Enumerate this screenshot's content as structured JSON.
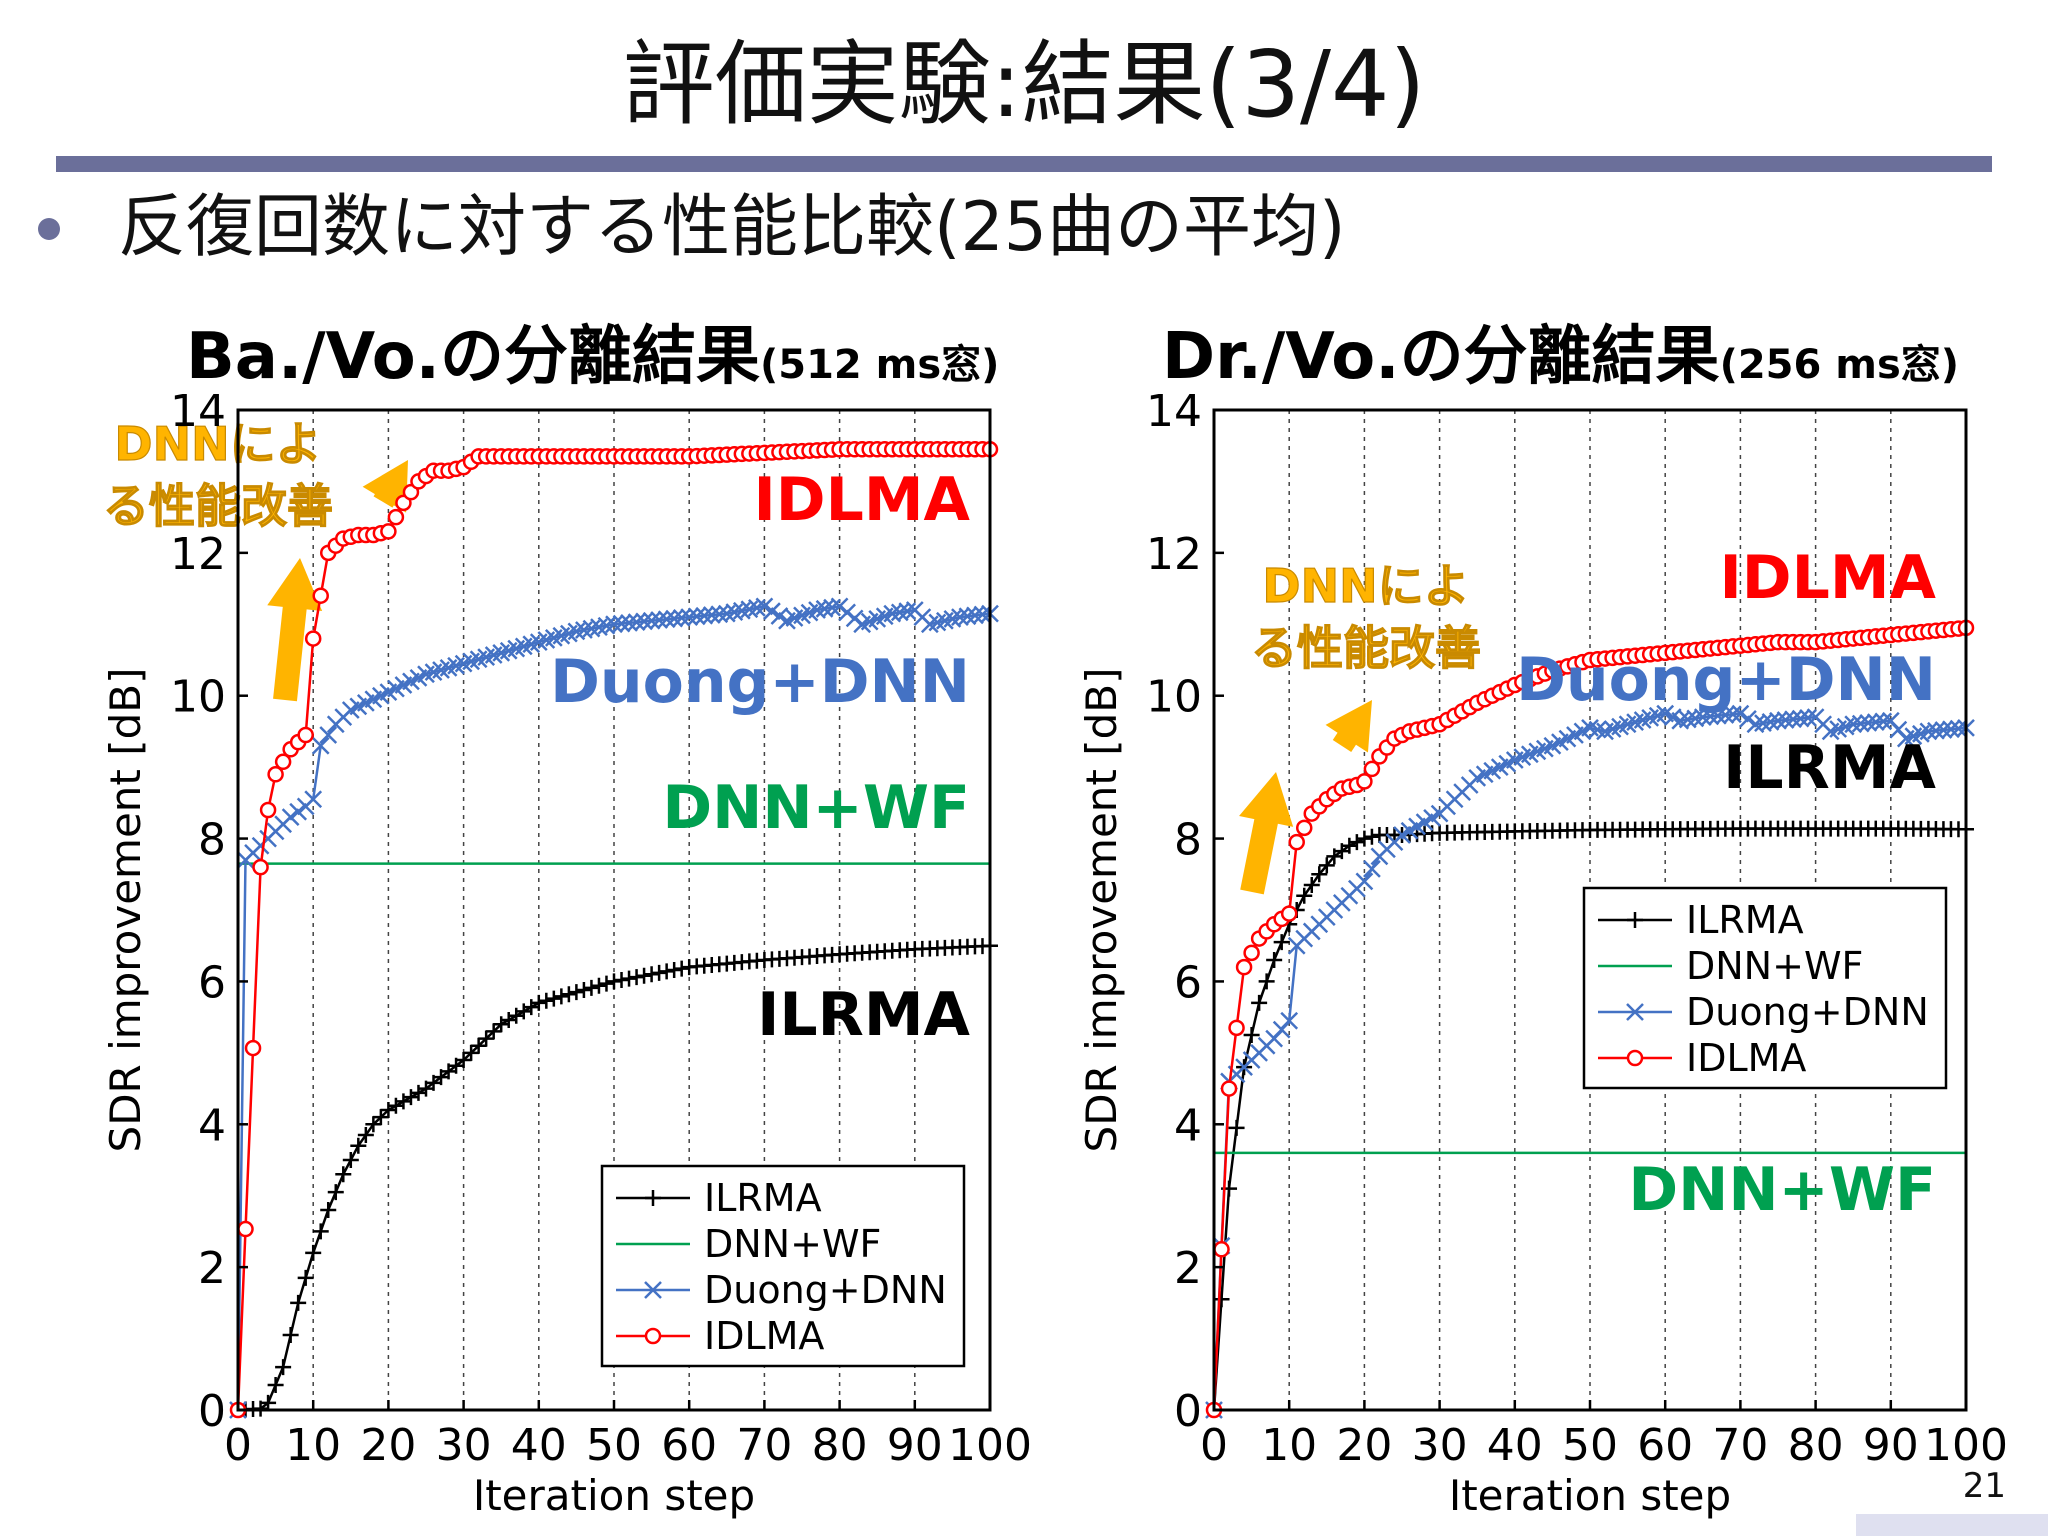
{
  "slide": {
    "title": "評価実験:結果(3/4)",
    "bullet": "反復回数に対する性能比較(25曲の平均)",
    "page_number": "21"
  },
  "colors": {
    "ILRMA": "#000000",
    "DNN+WF": "#00a050",
    "Duong+DNN": "#4472c4",
    "IDLMA": "#ff0000",
    "annotation": "#ffb400",
    "rule": "#6b6f9a"
  },
  "chart_data": [
    {
      "type": "line",
      "title": "Ba./Vo.の分離結果",
      "subtitle": "(512 ms窓)",
      "xlabel": "Iteration step",
      "ylabel": "SDR improvement [dB]",
      "xlim": [
        0,
        100
      ],
      "ylim": [
        0,
        14
      ],
      "xticks": [
        0,
        10,
        20,
        30,
        40,
        50,
        60,
        70,
        80,
        90,
        100
      ],
      "yticks": [
        0,
        2,
        4,
        6,
        8,
        10,
        12,
        14
      ],
      "grid": "vertical dotted",
      "legend_position": "bottom-right",
      "annotation": "DNNによる性能改善",
      "series": [
        {
          "name": "ILRMA",
          "marker": "plus",
          "points": [
            [
              0,
              0
            ],
            [
              3,
              0.02
            ],
            [
              4,
              0.1
            ],
            [
              6,
              0.6
            ],
            [
              8,
              1.5
            ],
            [
              10,
              2.2
            ],
            [
              12,
              2.8
            ],
            [
              14,
              3.3
            ],
            [
              16,
              3.7
            ],
            [
              18,
              4.0
            ],
            [
              20,
              4.2
            ],
            [
              25,
              4.5
            ],
            [
              30,
              4.9
            ],
            [
              35,
              5.4
            ],
            [
              40,
              5.7
            ],
            [
              45,
              5.85
            ],
            [
              50,
              6.0
            ],
            [
              55,
              6.1
            ],
            [
              60,
              6.2
            ],
            [
              70,
              6.3
            ],
            [
              80,
              6.38
            ],
            [
              90,
              6.45
            ],
            [
              100,
              6.5
            ]
          ]
        },
        {
          "name": "DNN+WF",
          "marker": "none",
          "points": [
            [
              0,
              7.65
            ],
            [
              100,
              7.65
            ]
          ]
        },
        {
          "name": "Duong+DNN",
          "marker": "x",
          "points": [
            [
              0,
              0
            ],
            [
              1,
              7.7
            ],
            [
              3,
              7.9
            ],
            [
              5,
              8.1
            ],
            [
              7,
              8.3
            ],
            [
              9,
              8.45
            ],
            [
              10,
              8.55
            ],
            [
              11,
              9.3
            ],
            [
              13,
              9.6
            ],
            [
              15,
              9.8
            ],
            [
              20,
              10.05
            ],
            [
              25,
              10.3
            ],
            [
              30,
              10.45
            ],
            [
              35,
              10.6
            ],
            [
              40,
              10.75
            ],
            [
              45,
              10.9
            ],
            [
              50,
              11.0
            ],
            [
              55,
              11.05
            ],
            [
              60,
              11.1
            ],
            [
              65,
              11.15
            ],
            [
              70,
              11.25
            ],
            [
              73,
              11.05
            ],
            [
              77,
              11.2
            ],
            [
              80,
              11.25
            ],
            [
              83,
              11.0
            ],
            [
              87,
              11.15
            ],
            [
              90,
              11.2
            ],
            [
              92,
              11.0
            ],
            [
              96,
              11.1
            ],
            [
              100,
              11.15
            ]
          ]
        },
        {
          "name": "IDLMA",
          "marker": "circle",
          "points": [
            [
              0,
              0
            ],
            [
              3,
              7.6
            ],
            [
              4,
              8.4
            ],
            [
              5,
              8.9
            ],
            [
              7,
              9.25
            ],
            [
              9,
              9.45
            ],
            [
              10,
              10.8
            ],
            [
              12,
              12.0
            ],
            [
              14,
              12.2
            ],
            [
              16,
              12.25
            ],
            [
              18,
              12.25
            ],
            [
              20,
              12.3
            ],
            [
              22,
              12.7
            ],
            [
              24,
              13.0
            ],
            [
              26,
              13.15
            ],
            [
              28,
              13.15
            ],
            [
              30,
              13.2
            ],
            [
              32,
              13.35
            ],
            [
              40,
              13.35
            ],
            [
              50,
              13.35
            ],
            [
              60,
              13.35
            ],
            [
              70,
              13.4
            ],
            [
              80,
              13.45
            ],
            [
              90,
              13.45
            ],
            [
              100,
              13.45
            ]
          ]
        }
      ],
      "inline_labels": [
        {
          "text": "IDLMA",
          "series": "IDLMA"
        },
        {
          "text": "Duong+DNN",
          "series": "Duong+DNN"
        },
        {
          "text": "DNN+WF",
          "series": "DNN+WF"
        },
        {
          "text": "ILRMA",
          "series": "ILRMA"
        }
      ]
    },
    {
      "type": "line",
      "title": "Dr./Vo.の分離結果",
      "subtitle": "(256 ms窓)",
      "xlabel": "Iteration step",
      "ylabel": "SDR improvement [dB]",
      "xlim": [
        0,
        100
      ],
      "ylim": [
        0,
        14
      ],
      "xticks": [
        0,
        10,
        20,
        30,
        40,
        50,
        60,
        70,
        80,
        90,
        100
      ],
      "yticks": [
        0,
        2,
        4,
        6,
        8,
        10,
        12,
        14
      ],
      "grid": "vertical dotted",
      "legend_position": "middle-right",
      "annotation": "DNNによる性能改善",
      "series": [
        {
          "name": "ILRMA",
          "marker": "plus",
          "points": [
            [
              0,
              0
            ],
            [
              2,
              3.1
            ],
            [
              4,
              4.8
            ],
            [
              6,
              5.7
            ],
            [
              8,
              6.3
            ],
            [
              10,
              6.8
            ],
            [
              12,
              7.2
            ],
            [
              14,
              7.5
            ],
            [
              16,
              7.75
            ],
            [
              18,
              7.9
            ],
            [
              20,
              8.0
            ],
            [
              22,
              8.05
            ],
            [
              25,
              8.05
            ],
            [
              30,
              8.08
            ],
            [
              40,
              8.1
            ],
            [
              50,
              8.12
            ],
            [
              60,
              8.13
            ],
            [
              70,
              8.14
            ],
            [
              80,
              8.14
            ],
            [
              90,
              8.14
            ],
            [
              100,
              8.13
            ]
          ]
        },
        {
          "name": "DNN+WF",
          "marker": "none",
          "points": [
            [
              0,
              3.6
            ],
            [
              100,
              3.6
            ]
          ]
        },
        {
          "name": "Duong+DNN",
          "marker": "x",
          "points": [
            [
              0,
              0
            ],
            [
              2,
              4.6
            ],
            [
              4,
              4.8
            ],
            [
              6,
              5.0
            ],
            [
              8,
              5.2
            ],
            [
              10,
              5.45
            ],
            [
              11,
              6.5
            ],
            [
              13,
              6.7
            ],
            [
              15,
              6.9
            ],
            [
              17,
              7.1
            ],
            [
              19,
              7.3
            ],
            [
              20,
              7.4
            ],
            [
              22,
              7.75
            ],
            [
              25,
              8.05
            ],
            [
              30,
              8.35
            ],
            [
              35,
              8.85
            ],
            [
              40,
              9.1
            ],
            [
              45,
              9.3
            ],
            [
              50,
              9.55
            ],
            [
              52,
              9.5
            ],
            [
              55,
              9.6
            ],
            [
              60,
              9.75
            ],
            [
              62,
              9.65
            ],
            [
              65,
              9.7
            ],
            [
              70,
              9.75
            ],
            [
              72,
              9.6
            ],
            [
              75,
              9.65
            ],
            [
              80,
              9.7
            ],
            [
              82,
              9.5
            ],
            [
              85,
              9.6
            ],
            [
              90,
              9.65
            ],
            [
              92,
              9.4
            ],
            [
              95,
              9.5
            ],
            [
              100,
              9.55
            ]
          ]
        },
        {
          "name": "IDLMA",
          "marker": "circle",
          "points": [
            [
              0,
              0
            ],
            [
              2,
              4.5
            ],
            [
              4,
              6.2
            ],
            [
              6,
              6.6
            ],
            [
              8,
              6.8
            ],
            [
              10,
              6.95
            ],
            [
              11,
              7.95
            ],
            [
              13,
              8.35
            ],
            [
              15,
              8.55
            ],
            [
              17,
              8.7
            ],
            [
              19,
              8.75
            ],
            [
              20,
              8.8
            ],
            [
              22,
              9.15
            ],
            [
              24,
              9.4
            ],
            [
              26,
              9.5
            ],
            [
              28,
              9.55
            ],
            [
              30,
              9.6
            ],
            [
              35,
              9.9
            ],
            [
              40,
              10.15
            ],
            [
              45,
              10.35
            ],
            [
              50,
              10.5
            ],
            [
              55,
              10.55
            ],
            [
              60,
              10.6
            ],
            [
              65,
              10.65
            ],
            [
              70,
              10.7
            ],
            [
              75,
              10.75
            ],
            [
              80,
              10.75
            ],
            [
              85,
              10.8
            ],
            [
              90,
              10.85
            ],
            [
              95,
              10.9
            ],
            [
              100,
              10.95
            ]
          ]
        }
      ],
      "inline_labels": [
        {
          "text": "IDLMA",
          "series": "IDLMA"
        },
        {
          "text": "Duong+DNN",
          "series": "Duong+DNN"
        },
        {
          "text": "ILRMA",
          "series": "ILRMA"
        },
        {
          "text": "DNN+WF",
          "series": "DNN+WF"
        }
      ]
    }
  ]
}
